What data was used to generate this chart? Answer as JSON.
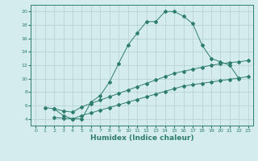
{
  "bg_color": "#d4ecee",
  "grid_color": "#b8d4d8",
  "line_color": "#2e7d6e",
  "line1_x": [
    1,
    2,
    3,
    4,
    5,
    6,
    7,
    8,
    9,
    10,
    11,
    12,
    13,
    14,
    15,
    16,
    17,
    18,
    19,
    20,
    21,
    22
  ],
  "line1_y": [
    5.7,
    5.5,
    4.5,
    4.0,
    4.0,
    6.5,
    7.5,
    9.5,
    12.3,
    15.0,
    16.8,
    18.5,
    18.5,
    20.0,
    20.0,
    19.3,
    18.2,
    15.0,
    13.0,
    12.5,
    12.0,
    10.0
  ],
  "line2_x": [
    2,
    3,
    4,
    5,
    6,
    7,
    8,
    9,
    10,
    11,
    12,
    13,
    14,
    15,
    16,
    17,
    18,
    19,
    20,
    21,
    22,
    23
  ],
  "line2_y": [
    4.2,
    4.1,
    4.0,
    4.5,
    4.9,
    5.3,
    5.7,
    6.1,
    6.5,
    6.9,
    7.3,
    7.7,
    8.1,
    8.5,
    8.9,
    9.1,
    9.3,
    9.5,
    9.7,
    9.9,
    10.1,
    10.3
  ],
  "line3_x": [
    2,
    3,
    4,
    5,
    6,
    7,
    8,
    9,
    10,
    11,
    12,
    13,
    14,
    15,
    16,
    17,
    18,
    19,
    20,
    21,
    22,
    23
  ],
  "line3_y": [
    5.5,
    5.2,
    5.0,
    5.8,
    6.3,
    6.8,
    7.3,
    7.8,
    8.3,
    8.8,
    9.3,
    9.8,
    10.3,
    10.8,
    11.1,
    11.4,
    11.7,
    12.0,
    12.2,
    12.4,
    12.5,
    12.7
  ],
  "xlim": [
    -0.5,
    23.5
  ],
  "ylim": [
    3.0,
    21.0
  ],
  "xticks": [
    0,
    1,
    2,
    3,
    4,
    5,
    6,
    7,
    8,
    9,
    10,
    11,
    12,
    13,
    14,
    15,
    16,
    17,
    18,
    19,
    20,
    21,
    22,
    23
  ],
  "yticks": [
    4,
    6,
    8,
    10,
    12,
    14,
    16,
    18,
    20
  ],
  "xlabel": "Humidex (Indice chaleur)",
  "tick_fontsize": 4.5,
  "label_fontsize": 6.5,
  "marker_size": 2.0,
  "lw": 0.7
}
